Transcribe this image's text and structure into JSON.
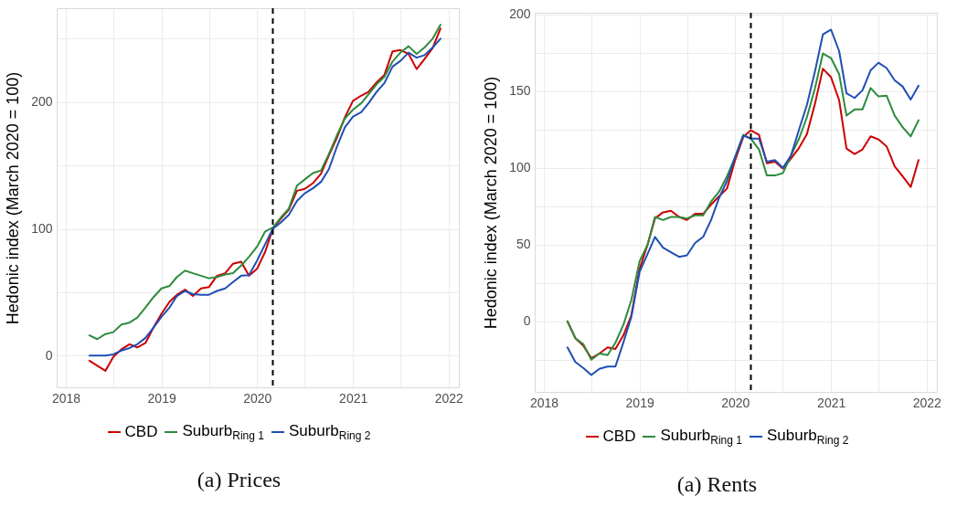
{
  "chart_data": [
    {
      "type": "line",
      "title": "(a) Prices",
      "ylabel": "Hedonic index (March 2020 = 100)",
      "x": [
        "2018-04",
        "2018-05",
        "2018-06",
        "2018-07",
        "2018-08",
        "2018-09",
        "2018-10",
        "2018-11",
        "2018-12",
        "2019-01",
        "2019-02",
        "2019-03",
        "2019-04",
        "2019-05",
        "2019-06",
        "2019-07",
        "2019-08",
        "2019-09",
        "2019-10",
        "2019-11",
        "2019-12",
        "2020-01",
        "2020-02",
        "2020-03",
        "2020-04",
        "2020-05",
        "2020-06",
        "2020-07",
        "2020-08",
        "2020-09",
        "2020-10",
        "2020-11",
        "2020-12",
        "2021-01",
        "2021-02",
        "2021-03",
        "2021-04",
        "2021-05",
        "2021-06",
        "2021-07",
        "2021-08",
        "2021-09",
        "2021-10",
        "2021-11",
        "2021-12"
      ],
      "series": [
        {
          "name": "CBD",
          "color": "#cc0000",
          "values": [
            -4,
            -8,
            -12,
            -1,
            5,
            9,
            6.5,
            10,
            22,
            33,
            42.5,
            48,
            52,
            47,
            53,
            54,
            63,
            65,
            72.5,
            74,
            63,
            68.5,
            82,
            100,
            108,
            115,
            130,
            131.5,
            136,
            143.5,
            158,
            172,
            188,
            201,
            205,
            208,
            215.5,
            221.5,
            240,
            241,
            238,
            226,
            234,
            242.5,
            258
          ]
        },
        {
          "name": "Suburb$_{Ring 1}$",
          "color": "#2e8b3e",
          "values": [
            16,
            13,
            17,
            18.5,
            24.5,
            26,
            30,
            38,
            46,
            53,
            55,
            62,
            67,
            65,
            63,
            61,
            62,
            64,
            65,
            71,
            78,
            86,
            98,
            101,
            109,
            116,
            134,
            139,
            144,
            146,
            159,
            174,
            187,
            194,
            199,
            206,
            214,
            220,
            232,
            239,
            244,
            238,
            243,
            250,
            261
          ]
        },
        {
          "name": "Suburb$_{Ring 2}$",
          "color": "#1f4fb4",
          "values": [
            0,
            0,
            0,
            1,
            4,
            6,
            9,
            14,
            22,
            30.5,
            38,
            47,
            51,
            48.5,
            48,
            48,
            51,
            53,
            58,
            63,
            63.5,
            75,
            88,
            100,
            105,
            111,
            122,
            128,
            132,
            137,
            147,
            165,
            180,
            188.5,
            192,
            199,
            208,
            215,
            228,
            232.5,
            239,
            235,
            237,
            243,
            250
          ]
        }
      ],
      "xlim": [
        "2017-11-27",
        "2022-02-09"
      ],
      "xticks": [
        {
          "value": "2018-01",
          "label": "2018"
        },
        {
          "value": "2018-07",
          "label": null
        },
        {
          "value": "2019-01",
          "label": "2019"
        },
        {
          "value": "2019-07",
          "label": null
        },
        {
          "value": "2020-01",
          "label": "2020"
        },
        {
          "value": "2020-07",
          "label": null
        },
        {
          "value": "2021-01",
          "label": "2021"
        },
        {
          "value": "2021-07",
          "label": null
        },
        {
          "value": "2022-01",
          "label": "2022"
        }
      ],
      "ylim": [
        -25,
        274
      ],
      "yticks": [
        0,
        {
          "value": 50,
          "label": null
        },
        100,
        {
          "value": 150,
          "label": null
        },
        200,
        {
          "value": 250,
          "label": null
        }
      ],
      "ref_lines": [
        {
          "axis": "x",
          "value": "2020-03",
          "color": "#000000",
          "line_style": "dashed"
        }
      ],
      "grid": true,
      "legend": "bottom",
      "line_style": "solid"
    },
    {
      "type": "line",
      "title": "(a) Rents",
      "ylabel": "Hedonic index (March 2020 = 100)",
      "x": [
        "2018-04",
        "2018-05",
        "2018-06",
        "2018-07",
        "2018-08",
        "2018-09",
        "2018-10",
        "2018-11",
        "2018-12",
        "2019-01",
        "2019-02",
        "2019-03",
        "2019-04",
        "2019-05",
        "2019-06",
        "2019-07",
        "2019-08",
        "2019-09",
        "2019-10",
        "2019-11",
        "2019-12",
        "2020-01",
        "2020-02",
        "2020-03",
        "2020-04",
        "2020-05",
        "2020-06",
        "2020-07",
        "2020-08",
        "2020-09",
        "2020-10",
        "2020-11",
        "2020-12",
        "2021-01",
        "2021-02",
        "2021-03",
        "2021-04",
        "2021-05",
        "2021-06",
        "2021-07",
        "2021-08",
        "2021-09",
        "2021-10",
        "2021-11",
        "2021-12"
      ],
      "series": [
        {
          "name": "CBD",
          "color": "#cc0000",
          "values": [
            0,
            -11,
            -16,
            -24,
            -21,
            -17,
            -18,
            -9,
            4,
            34,
            50,
            67,
            71,
            72,
            68,
            66,
            70,
            70,
            76,
            81.5,
            86.5,
            105,
            120,
            124.5,
            121.5,
            103,
            104,
            99.5,
            106,
            113,
            122,
            142,
            164.5,
            159,
            144,
            112.5,
            109,
            112,
            120.5,
            118.5,
            114,
            101,
            94.5,
            87.5,
            105
          ]
        },
        {
          "name": "Suburb$_{Ring 1}$",
          "color": "#2e8b3e",
          "values": [
            0,
            -11,
            -15,
            -25,
            -21,
            -22,
            -14,
            -2,
            14,
            39,
            50,
            68,
            66,
            68,
            68,
            67,
            69,
            69,
            78,
            84.5,
            94.5,
            107,
            121.5,
            119,
            112,
            95,
            95,
            96.5,
            108,
            119,
            133,
            152,
            174.5,
            171.5,
            161,
            134,
            138,
            138,
            152,
            146.5,
            147,
            134,
            126.5,
            120.5,
            131
          ]
        },
        {
          "name": "Suburb$_{Ring 2}$",
          "color": "#1f4fb4",
          "values": [
            -17,
            -26.5,
            -30.5,
            -35,
            -31,
            -29.5,
            -29.5,
            -13.5,
            3,
            32,
            44,
            55,
            48,
            45,
            42,
            43,
            51,
            55,
            66,
            80.5,
            91.5,
            107,
            121,
            119,
            119,
            104,
            105,
            100,
            108,
            125,
            141,
            163,
            187,
            190,
            176,
            148.5,
            145.5,
            150.5,
            163.5,
            168.5,
            165,
            157,
            153,
            144.5,
            153.5
          ]
        }
      ],
      "xlim": [
        "2017-11-27",
        "2022-02-09"
      ],
      "xticks": [
        {
          "value": "2018-01",
          "label": "2018"
        },
        {
          "value": "2018-07",
          "label": null
        },
        {
          "value": "2019-01",
          "label": "2019"
        },
        {
          "value": "2019-07",
          "label": null
        },
        {
          "value": "2020-01",
          "label": "2020"
        },
        {
          "value": "2020-07",
          "label": null
        },
        {
          "value": "2021-01",
          "label": "2021"
        },
        {
          "value": "2021-07",
          "label": null
        },
        {
          "value": "2022-01",
          "label": "2022"
        }
      ],
      "ylim": [
        -46,
        201
      ],
      "yticks": [
        {
          "value": -25,
          "label": null
        },
        0,
        {
          "value": 25,
          "label": null
        },
        50,
        {
          "value": 75,
          "label": null
        },
        100,
        {
          "value": 125,
          "label": null
        },
        150,
        {
          "value": 175,
          "label": null
        },
        200
      ],
      "ref_lines": [
        {
          "axis": "x",
          "value": "2020-03",
          "color": "#000000",
          "line_style": "dashed"
        }
      ],
      "grid": true,
      "legend": "bottom",
      "line_style": "solid"
    }
  ]
}
